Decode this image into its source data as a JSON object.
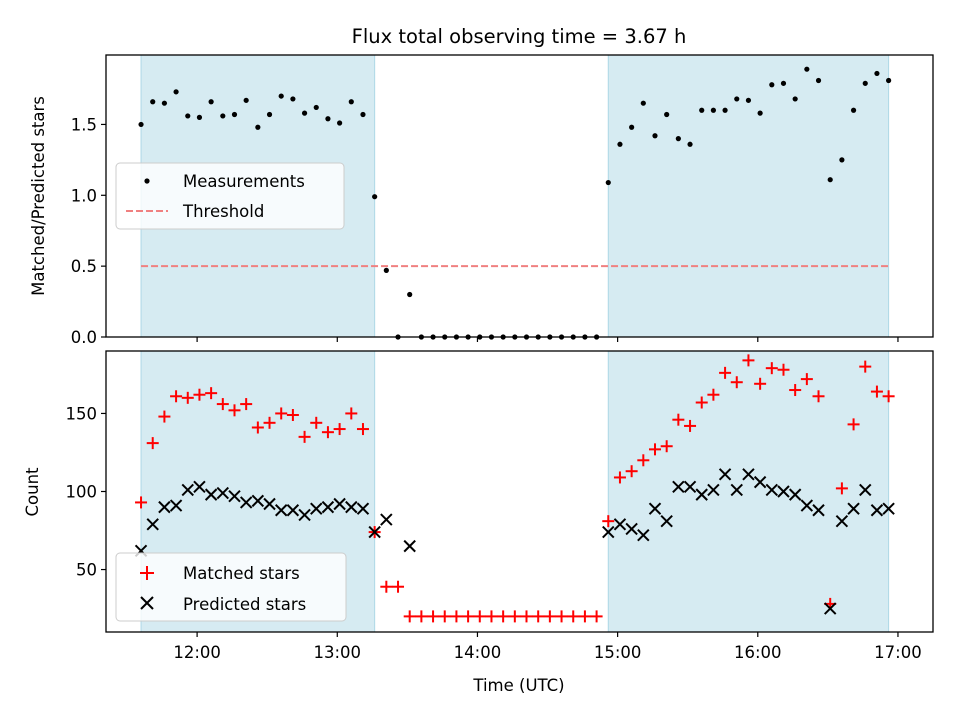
{
  "title": "Flux total observing time = 3.67 h",
  "colors": {
    "shade": "#add8e6",
    "measurement": "#000000",
    "threshold": "#f08080",
    "matched": "#ff0000",
    "predicted": "#000000"
  },
  "chart_data": [
    {
      "type": "scatter",
      "ylabel": "Matched/Predicted stars",
      "xlim": [
        "11:21",
        "17:15"
      ],
      "ylim": [
        0,
        1.99
      ],
      "yticks": [
        "0.0",
        "0.5",
        "1.0",
        "1.5"
      ],
      "shaded_ranges": [
        [
          "11:36",
          "13:16"
        ],
        [
          "14:56",
          "16:56"
        ]
      ],
      "threshold": {
        "name": "Threshold",
        "value": 0.5,
        "x_range": [
          "11:36",
          "16:56"
        ]
      },
      "legend": {
        "position": "center-left"
      },
      "series": [
        {
          "name": "Measurements",
          "x": [
            "11:36",
            "11:41",
            "11:46",
            "11:51",
            "11:56",
            "12:01",
            "12:06",
            "12:11",
            "12:16",
            "12:21",
            "12:26",
            "12:31",
            "12:36",
            "12:41",
            "12:46",
            "12:51",
            "12:56",
            "13:01",
            "13:06",
            "13:11",
            "13:16",
            "13:21",
            "13:26",
            "13:31",
            "13:36",
            "13:41",
            "13:46",
            "13:51",
            "13:56",
            "14:01",
            "14:06",
            "14:11",
            "14:16",
            "14:21",
            "14:26",
            "14:31",
            "14:36",
            "14:41",
            "14:46",
            "14:51",
            "14:56",
            "15:01",
            "15:06",
            "15:11",
            "15:16",
            "15:21",
            "15:26",
            "15:31",
            "15:36",
            "15:41",
            "15:46",
            "15:51",
            "15:56",
            "16:01",
            "16:06",
            "16:11",
            "16:16",
            "16:21",
            "16:26",
            "16:31",
            "16:36",
            "16:41",
            "16:46",
            "16:51",
            "16:56"
          ],
          "y": [
            1.5,
            1.66,
            1.65,
            1.73,
            1.56,
            1.55,
            1.66,
            1.56,
            1.57,
            1.67,
            1.48,
            1.57,
            1.7,
            1.68,
            1.58,
            1.62,
            1.54,
            1.51,
            1.66,
            1.57,
            0.99,
            0.47,
            0.0,
            0.3,
            0.0,
            0.0,
            0.0,
            0.0,
            0.0,
            0.0,
            0.0,
            0.0,
            0.0,
            0.0,
            0.0,
            0.0,
            0.0,
            0.0,
            0.0,
            0.0,
            1.09,
            1.36,
            1.48,
            1.65,
            1.42,
            1.57,
            1.4,
            1.36,
            1.6,
            1.6,
            1.6,
            1.68,
            1.67,
            1.58,
            1.78,
            1.79,
            1.68,
            1.89,
            1.81,
            1.11,
            1.25,
            1.6,
            1.79,
            1.86,
            1.81
          ]
        }
      ]
    },
    {
      "type": "scatter",
      "xlabel": "Time (UTC)",
      "ylabel": "Count",
      "xlim": [
        "11:21",
        "17:15"
      ],
      "ylim": [
        10,
        190
      ],
      "xticks": [
        "12:00",
        "13:00",
        "14:00",
        "15:00",
        "16:00",
        "17:00"
      ],
      "yticks": [
        "50",
        "100",
        "150"
      ],
      "shaded_ranges": [
        [
          "11:36",
          "13:16"
        ],
        [
          "14:56",
          "16:56"
        ]
      ],
      "legend": {
        "position": "bottom-left"
      },
      "series": [
        {
          "name": "Matched stars",
          "x": [
            "11:36",
            "11:41",
            "11:46",
            "11:51",
            "11:56",
            "12:01",
            "12:06",
            "12:11",
            "12:16",
            "12:21",
            "12:26",
            "12:31",
            "12:36",
            "12:41",
            "12:46",
            "12:51",
            "12:56",
            "13:01",
            "13:06",
            "13:11",
            "13:16",
            "13:21",
            "13:26",
            "13:31",
            "13:36",
            "13:41",
            "13:46",
            "13:51",
            "13:56",
            "14:01",
            "14:06",
            "14:11",
            "14:16",
            "14:21",
            "14:26",
            "14:31",
            "14:36",
            "14:41",
            "14:46",
            "14:51",
            "14:56",
            "15:01",
            "15:06",
            "15:11",
            "15:16",
            "15:21",
            "15:26",
            "15:31",
            "15:36",
            "15:41",
            "15:46",
            "15:51",
            "15:56",
            "16:01",
            "16:06",
            "16:11",
            "16:16",
            "16:21",
            "16:26",
            "16:31",
            "16:36",
            "16:41",
            "16:46",
            "16:51",
            "16:56"
          ],
          "y": [
            93,
            131,
            148,
            161,
            160,
            162,
            163,
            156,
            152,
            156,
            141,
            144,
            150,
            149,
            135,
            144,
            138,
            140,
            150,
            140,
            74,
            39,
            39,
            20,
            20,
            20,
            20,
            20,
            20,
            20,
            20,
            20,
            20,
            20,
            20,
            20,
            20,
            20,
            20,
            20,
            81,
            109,
            113,
            120,
            127,
            129,
            146,
            142,
            157,
            162,
            176,
            170,
            184,
            169,
            179,
            178,
            165,
            172,
            161,
            28,
            102,
            143,
            180,
            164,
            161
          ]
        },
        {
          "name": "Predicted stars",
          "x": [
            "11:36",
            "11:41",
            "11:46",
            "11:51",
            "11:56",
            "12:01",
            "12:06",
            "12:11",
            "12:16",
            "12:21",
            "12:26",
            "12:31",
            "12:36",
            "12:41",
            "12:46",
            "12:51",
            "12:56",
            "13:01",
            "13:06",
            "13:11",
            "13:16",
            "13:21",
            "13:31",
            "14:56",
            "15:01",
            "15:06",
            "15:11",
            "15:16",
            "15:21",
            "15:26",
            "15:31",
            "15:36",
            "15:41",
            "15:46",
            "15:51",
            "15:56",
            "16:01",
            "16:06",
            "16:11",
            "16:16",
            "16:21",
            "16:26",
            "16:31",
            "16:36",
            "16:41",
            "16:46",
            "16:51",
            "16:56"
          ],
          "y": [
            62,
            79,
            90,
            91,
            101,
            103,
            98,
            99,
            97,
            93,
            94,
            92,
            88,
            88,
            85,
            89,
            90,
            92,
            90,
            89,
            74,
            82,
            65,
            74,
            79,
            76,
            72,
            89,
            81,
            103,
            103,
            98,
            101,
            111,
            101,
            111,
            106,
            101,
            100,
            98,
            91,
            88,
            25,
            81,
            89,
            101,
            88,
            89
          ]
        }
      ]
    }
  ]
}
